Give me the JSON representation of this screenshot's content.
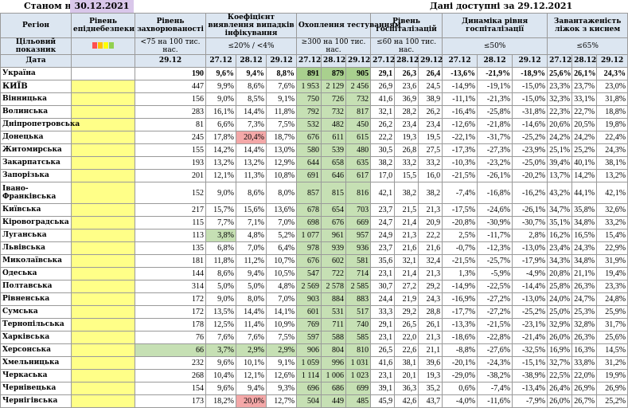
{
  "header": {
    "as_of_label": "Станом на",
    "as_of_date": "30.12.2021",
    "data_available": "Дані доступні за  29.12.2021"
  },
  "columns": {
    "region": "Регіон",
    "level": "Рівень епіднебезпеки",
    "incidence": "Рівень захворюваності",
    "detection": "Коефіцієнт виявлення випадків інфікування",
    "testing": "Охоплення тестуванням",
    "hosp": "Рівень госпіталізацій",
    "dynamics": "Динаміка рівня госпіталізації",
    "oxygen": "Завантаженість ліжок з киснем"
  },
  "target_row": {
    "label": "Цільовий показник",
    "incidence": "<75 на 100 тис. нас.",
    "detection": "≤20% / <4%",
    "testing": "≥300 на 100 тис. нас.",
    "hosp": "≤60 на 100 тис. нас.",
    "dynamics": "≤50%",
    "oxygen": "≤65%"
  },
  "date_row": {
    "label": "Дата",
    "incidence": "29.12",
    "d1": "27.12",
    "d2": "28.12",
    "d3": "29.12"
  },
  "swatches": [
    "#ff5050",
    "#ffc000",
    "#ffff00",
    "#92d050"
  ],
  "rows": [
    {
      "name": "Україна",
      "ua": true,
      "inc": "190",
      "det": [
        "9,6%",
        "9,4%",
        "8,8%"
      ],
      "test": [
        "891",
        "879",
        "905"
      ],
      "hosp": [
        "29,1",
        "26,3",
        "26,4"
      ],
      "dyn": [
        "-13,6%",
        "-21,9%",
        "-18,9%"
      ],
      "oxy": [
        "25,6%",
        "26,1%",
        "24,3%"
      ]
    },
    {
      "name": "КИЇВ",
      "kyiv": true,
      "inc": "447",
      "det": [
        "9,9%",
        "8,6%",
        "7,6%"
      ],
      "test": [
        "1 953",
        "2 129",
        "2 456"
      ],
      "hosp": [
        "26,9",
        "23,6",
        "24,5"
      ],
      "dyn": [
        "-14,9%",
        "-19,1%",
        "-15,0%"
      ],
      "oxy": [
        "23,3%",
        "23,7%",
        "23,0%"
      ]
    },
    {
      "name": "Вінницька",
      "inc": "156",
      "det": [
        "9,0%",
        "8,5%",
        "9,1%"
      ],
      "test": [
        "750",
        "726",
        "732"
      ],
      "hosp": [
        "41,6",
        "36,9",
        "38,9"
      ],
      "dyn": [
        "-11,1%",
        "-21,3%",
        "-15,0%"
      ],
      "oxy": [
        "32,3%",
        "33,1%",
        "31,8%"
      ]
    },
    {
      "name": "Волинська",
      "inc": "283",
      "det": [
        "16,1%",
        "14,4%",
        "11,8%"
      ],
      "test": [
        "792",
        "732",
        "817"
      ],
      "hosp": [
        "32,1",
        "28,2",
        "26,2"
      ],
      "dyn": [
        "-16,4%",
        "-25,8%",
        "-31,8%"
      ],
      "oxy": [
        "22,3%",
        "22,7%",
        "18,8%"
      ]
    },
    {
      "name": "Дніпропетровська",
      "inc": "81",
      "det": [
        "6,6%",
        "7,3%",
        "7,5%"
      ],
      "test": [
        "532",
        "482",
        "450"
      ],
      "hosp": [
        "26,2",
        "23,4",
        "23,4"
      ],
      "dyn": [
        "-12,6%",
        "-21,8%",
        "-14,6%"
      ],
      "oxy": [
        "20,6%",
        "20,5%",
        "19,8%"
      ]
    },
    {
      "name": "Донецька",
      "inc": "245",
      "det": [
        "17,8%",
        "20,4%",
        "18,7%"
      ],
      "test": [
        "676",
        "611",
        "615"
      ],
      "hosp": [
        "22,2",
        "19,3",
        "19,5"
      ],
      "dyn": [
        "-22,1%",
        "-31,7%",
        "-25,2%"
      ],
      "oxy": [
        "24,2%",
        "24,2%",
        "22,4%"
      ],
      "red": [
        1
      ]
    },
    {
      "name": "Житомирська",
      "inc": "155",
      "det": [
        "14,2%",
        "14,4%",
        "13,0%"
      ],
      "test": [
        "580",
        "539",
        "480"
      ],
      "hosp": [
        "30,5",
        "26,8",
        "27,5"
      ],
      "dyn": [
        "-17,3%",
        "-27,3%",
        "-23,9%"
      ],
      "oxy": [
        "25,1%",
        "25,2%",
        "24,3%"
      ]
    },
    {
      "name": "Закарпатська",
      "inc": "193",
      "det": [
        "13,2%",
        "13,2%",
        "12,9%"
      ],
      "test": [
        "644",
        "658",
        "635"
      ],
      "hosp": [
        "38,2",
        "33,2",
        "33,2"
      ],
      "dyn": [
        "-10,3%",
        "-23,2%",
        "-25,0%"
      ],
      "oxy": [
        "39,4%",
        "40,1%",
        "38,1%"
      ]
    },
    {
      "name": "Запорізька",
      "inc": "201",
      "det": [
        "12,1%",
        "11,3%",
        "10,8%"
      ],
      "test": [
        "691",
        "646",
        "617"
      ],
      "hosp": [
        "17,0",
        "15,5",
        "16,0"
      ],
      "dyn": [
        "-21,5%",
        "-26,1%",
        "-20,2%"
      ],
      "oxy": [
        "13,7%",
        "14,2%",
        "13,2%"
      ]
    },
    {
      "name": "Івано-Франківська",
      "tall": true,
      "inc": "152",
      "det": [
        "9,0%",
        "8,6%",
        "8,0%"
      ],
      "test": [
        "857",
        "815",
        "816"
      ],
      "hosp": [
        "42,1",
        "38,2",
        "38,2"
      ],
      "dyn": [
        "-7,4%",
        "-16,8%",
        "-16,2%"
      ],
      "oxy": [
        "43,2%",
        "44,1%",
        "42,1%"
      ]
    },
    {
      "name": "Київська",
      "inc": "217",
      "det": [
        "15,7%",
        "15,6%",
        "13,6%"
      ],
      "test": [
        "678",
        "654",
        "703"
      ],
      "hosp": [
        "23,7",
        "21,5",
        "21,3"
      ],
      "dyn": [
        "-17,5%",
        "-24,6%",
        "-26,1%"
      ],
      "oxy": [
        "34,7%",
        "35,8%",
        "32,6%"
      ]
    },
    {
      "name": "Кіровоградська",
      "inc": "115",
      "det": [
        "7,7%",
        "7,1%",
        "7,0%"
      ],
      "test": [
        "698",
        "676",
        "669"
      ],
      "hosp": [
        "24,7",
        "21,4",
        "20,9"
      ],
      "dyn": [
        "-20,8%",
        "-30,9%",
        "-30,7%"
      ],
      "oxy": [
        "35,1%",
        "34,8%",
        "33,2%"
      ]
    },
    {
      "name": "Луганська",
      "inc": "113",
      "det": [
        "3,8%",
        "4,8%",
        "5,2%"
      ],
      "test": [
        "1 077",
        "961",
        "957"
      ],
      "hosp": [
        "24,9",
        "21,3",
        "22,2"
      ],
      "dyn": [
        "2,5%",
        "-11,7%",
        "2,8%"
      ],
      "oxy": [
        "16,2%",
        "16,5%",
        "15,4%"
      ],
      "gdet": [
        0
      ]
    },
    {
      "name": "Львівська",
      "inc": "135",
      "det": [
        "6,8%",
        "7,0%",
        "6,4%"
      ],
      "test": [
        "978",
        "939",
        "936"
      ],
      "hosp": [
        "23,7",
        "21,6",
        "21,6"
      ],
      "dyn": [
        "-0,7%",
        "-12,3%",
        "-13,0%"
      ],
      "oxy": [
        "23,4%",
        "24,3%",
        "22,9%"
      ]
    },
    {
      "name": "Миколаївська",
      "inc": "181",
      "det": [
        "11,8%",
        "11,2%",
        "10,7%"
      ],
      "test": [
        "676",
        "602",
        "581"
      ],
      "hosp": [
        "35,6",
        "32,1",
        "32,4"
      ],
      "dyn": [
        "-21,5%",
        "-25,7%",
        "-17,9%"
      ],
      "oxy": [
        "34,3%",
        "34,8%",
        "31,9%"
      ]
    },
    {
      "name": "Одеська",
      "inc": "144",
      "det": [
        "8,6%",
        "9,4%",
        "10,5%"
      ],
      "test": [
        "547",
        "722",
        "714"
      ],
      "hosp": [
        "23,1",
        "21,4",
        "21,3"
      ],
      "dyn": [
        "1,3%",
        "-5,9%",
        "-4,9%"
      ],
      "oxy": [
        "20,8%",
        "21,1%",
        "19,4%"
      ]
    },
    {
      "name": "Полтавська",
      "inc": "314",
      "det": [
        "5,0%",
        "5,0%",
        "4,8%"
      ],
      "test": [
        "2 569",
        "2 578",
        "2 585"
      ],
      "hosp": [
        "30,7",
        "27,2",
        "29,2"
      ],
      "dyn": [
        "-14,9%",
        "-22,5%",
        "-14,4%"
      ],
      "oxy": [
        "25,8%",
        "26,3%",
        "23,3%"
      ]
    },
    {
      "name": "Рівненська",
      "inc": "172",
      "det": [
        "9,0%",
        "8,0%",
        "7,0%"
      ],
      "test": [
        "903",
        "884",
        "883"
      ],
      "hosp": [
        "24,4",
        "21,9",
        "24,3"
      ],
      "dyn": [
        "-16,9%",
        "-27,2%",
        "-13,0%"
      ],
      "oxy": [
        "24,0%",
        "24,7%",
        "24,8%"
      ]
    },
    {
      "name": "Сумська",
      "inc": "172",
      "det": [
        "13,5%",
        "14,4%",
        "14,1%"
      ],
      "test": [
        "601",
        "531",
        "517"
      ],
      "hosp": [
        "33,3",
        "29,2",
        "28,8"
      ],
      "dyn": [
        "-17,7%",
        "-27,2%",
        "-25,2%"
      ],
      "oxy": [
        "25,0%",
        "25,3%",
        "25,9%"
      ]
    },
    {
      "name": "Тернопільська",
      "inc": "178",
      "det": [
        "12,5%",
        "11,4%",
        "10,9%"
      ],
      "test": [
        "769",
        "711",
        "740"
      ],
      "hosp": [
        "29,1",
        "26,5",
        "26,1"
      ],
      "dyn": [
        "-13,3%",
        "-21,5%",
        "-23,1%"
      ],
      "oxy": [
        "32,9%",
        "32,8%",
        "31,7%"
      ]
    },
    {
      "name": "Харківська",
      "inc": "76",
      "det": [
        "7,6%",
        "7,6%",
        "7,5%"
      ],
      "test": [
        "597",
        "588",
        "585"
      ],
      "hosp": [
        "23,1",
        "22,0",
        "21,3"
      ],
      "dyn": [
        "-18,6%",
        "-22,8%",
        "-21,4%"
      ],
      "oxy": [
        "26,0%",
        "26,3%",
        "25,6%"
      ]
    },
    {
      "name": "Херсонська",
      "inc": "66",
      "det": [
        "3,7%",
        "2,9%",
        "2,9%"
      ],
      "test": [
        "906",
        "804",
        "810"
      ],
      "hosp": [
        "26,5",
        "22,6",
        "21,1"
      ],
      "dyn": [
        "-8,8%",
        "-27,6%",
        "-32,5%"
      ],
      "oxy": [
        "16,9%",
        "16,3%",
        "14,5%"
      ],
      "ginc": true,
      "gdet": [
        0,
        1,
        2
      ]
    },
    {
      "name": "Хмельницька",
      "inc": "232",
      "det": [
        "9,6%",
        "10,1%",
        "9,1%"
      ],
      "test": [
        "1 059",
        "996",
        "1 031"
      ],
      "hosp": [
        "41,6",
        "38,1",
        "39,6"
      ],
      "dyn": [
        "-20,1%",
        "-24,3%",
        "-15,1%"
      ],
      "oxy": [
        "32,7%",
        "33,8%",
        "31,2%"
      ]
    },
    {
      "name": "Черкаська",
      "inc": "268",
      "det": [
        "10,4%",
        "12,1%",
        "12,6%"
      ],
      "test": [
        "1 114",
        "1 006",
        "1 023"
      ],
      "hosp": [
        "23,1",
        "20,1",
        "19,3"
      ],
      "dyn": [
        "-29,0%",
        "-38,2%",
        "-38,9%"
      ],
      "oxy": [
        "22,5%",
        "22,0%",
        "19,9%"
      ]
    },
    {
      "name": "Чернівецька",
      "inc": "154",
      "det": [
        "9,6%",
        "9,4%",
        "9,3%"
      ],
      "test": [
        "696",
        "686",
        "699"
      ],
      "hosp": [
        "39,1",
        "36,3",
        "35,2"
      ],
      "dyn": [
        "0,6%",
        "-7,4%",
        "-13,4%"
      ],
      "oxy": [
        "26,4%",
        "26,9%",
        "26,9%"
      ]
    },
    {
      "name": "Чернігівська",
      "inc": "173",
      "det": [
        "18,2%",
        "20,0%",
        "12,7%"
      ],
      "test": [
        "504",
        "449",
        "485"
      ],
      "hosp": [
        "45,9",
        "42,6",
        "43,7"
      ],
      "dyn": [
        "-4,0%",
        "-11,6%",
        "-7,9%"
      ],
      "oxy": [
        "26,0%",
        "26,7%",
        "25,2%"
      ],
      "red": [
        1
      ]
    }
  ]
}
